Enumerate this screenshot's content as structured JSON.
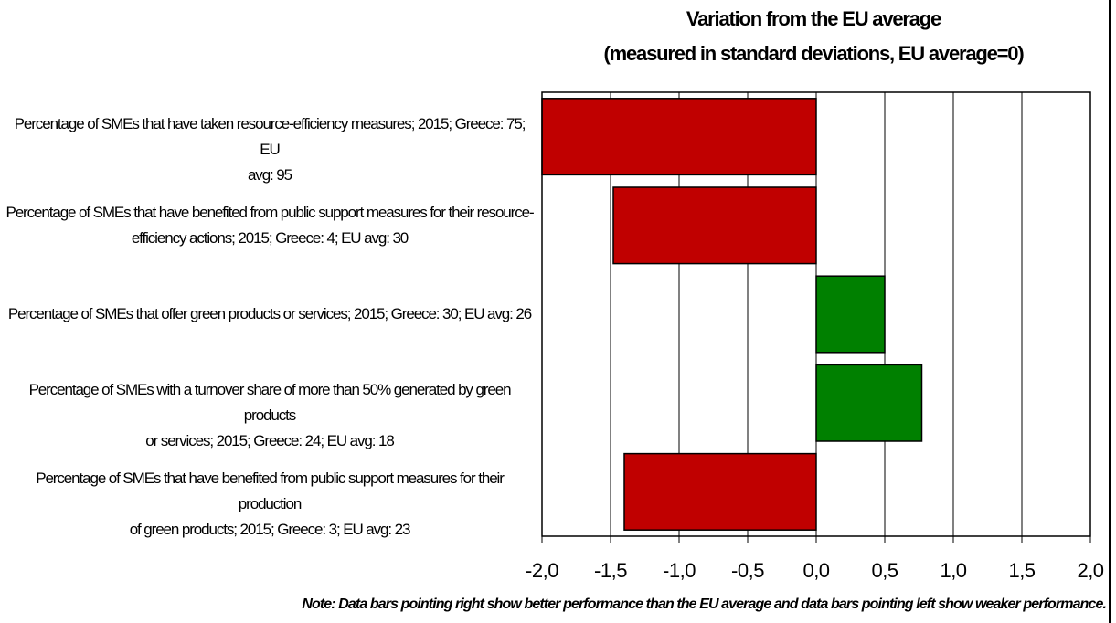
{
  "chart_data": {
    "type": "bar",
    "orientation": "horizontal",
    "title": "Variation from the EU average",
    "subtitle": "(measured in standard deviations, EU average=0)",
    "categories": [
      [
        "Percentage of SMEs that have taken resource-efficiency measures; 2015; Greece: 75; EU",
        "avg: 95"
      ],
      [
        "Percentage of SMEs that have benefited from public support measures for their resource-",
        "efficiency actions; 2015; Greece: 4; EU avg: 30"
      ],
      [
        "Percentage of SMEs that offer green products or services; 2015; Greece: 30; EU avg: 26"
      ],
      [
        "Percentage of SMEs with a turnover share of more than 50% generated by green products",
        "or services; 2015; Greece: 24; EU avg: 18"
      ],
      [
        "Percentage of SMEs that have benefited from public support measures for their production",
        "of green products; 2015; Greece: 3; EU avg: 23"
      ]
    ],
    "values": [
      -2.0,
      -1.48,
      0.5,
      0.77,
      -1.4
    ],
    "xlim": [
      -2.0,
      2.0
    ],
    "xticks": [
      "-2,0",
      "-1,5",
      "-1,0",
      "-0,5",
      "0,0",
      "0,5",
      "1,0",
      "1,5",
      "2,0"
    ],
    "grid": "vertical",
    "colors": {
      "positive": "#008000",
      "negative": "#c00000"
    },
    "note": "Note: Data bars pointing right show better performance than the EU average and data bars pointing left show weaker performance."
  }
}
